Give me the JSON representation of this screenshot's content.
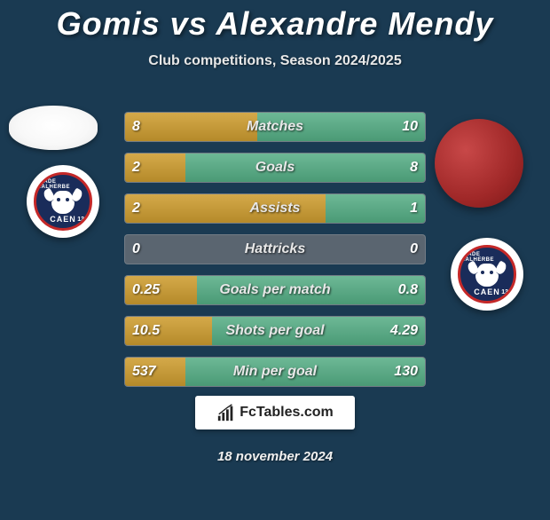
{
  "title": "Gomis vs Alexandre Mendy",
  "subtitle": "Club competitions, Season 2024/2025",
  "footer_logo_text": "FcTables.com",
  "footer_date": "18 november 2024",
  "colors": {
    "background": "#1a3a52",
    "player1_bar": "#c7992f",
    "player2_bar": "#5bab87",
    "neutral_bar": "#5a6570",
    "title_color": "#ffffff"
  },
  "title_fontsize": 36,
  "subtitle_fontsize": 16,
  "club": {
    "name": "CAEN",
    "top_text": "STADE MALHERBE",
    "number": "13",
    "outer_ring": "#c42828",
    "inner_bg": "#1a2c5a"
  },
  "rows": [
    {
      "label": "Matches",
      "p1": "8",
      "p2": "10",
      "p1_pct": 44,
      "p2_pct": 56
    },
    {
      "label": "Goals",
      "p1": "2",
      "p2": "8",
      "p1_pct": 20,
      "p2_pct": 80
    },
    {
      "label": "Assists",
      "p1": "2",
      "p2": "1",
      "p1_pct": 67,
      "p2_pct": 33
    },
    {
      "label": "Hattricks",
      "p1": "0",
      "p2": "0",
      "p1_pct": 0,
      "p2_pct": 0
    },
    {
      "label": "Goals per match",
      "p1": "0.25",
      "p2": "0.8",
      "p1_pct": 24,
      "p2_pct": 76
    },
    {
      "label": "Shots per goal",
      "p1": "10.5",
      "p2": "4.29",
      "p1_pct": 29,
      "p2_pct": 71
    },
    {
      "label": "Min per goal",
      "p1": "537",
      "p2": "130",
      "p1_pct": 20,
      "p2_pct": 80
    }
  ]
}
